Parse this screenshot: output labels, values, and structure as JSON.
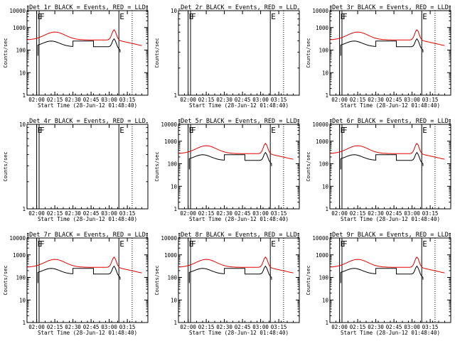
{
  "chart_data": [
    {
      "type": "line",
      "title": "Det 1r BLACK = Events, RED = LLD",
      "ylabel": "Counts/sec",
      "xlabel": "Start Time (28-Jun-12 01:48:40)",
      "xticks": [
        "02:00",
        "02:15",
        "02:30",
        "02:45",
        "03:00",
        "03:15"
      ],
      "log_y": true,
      "ylim": [
        1,
        10000
      ],
      "yticks": [
        "1",
        "10",
        "100",
        "1000",
        "10000"
      ],
      "markers": [
        {
          "label": "E",
          "t": "02:00"
        },
        {
          "label": "F",
          "t": "02:01"
        },
        {
          "label": "E",
          "t": "03:08"
        }
      ],
      "series": [
        {
          "name": "Events",
          "color": "#000000",
          "enabled": true
        },
        {
          "name": "LLD",
          "color": "#e00000",
          "enabled": true
        }
      ]
    },
    {
      "type": "line",
      "title": "Det 2r BLACK = Events, RED = LLD",
      "ylabel": "Counts/sec",
      "xlabel": "Start Time (28-Jun-12 01:48:40)",
      "xticks": [
        "02:00",
        "02:15",
        "02:30",
        "02:45",
        "03:00",
        "03:15"
      ],
      "log_y": true,
      "ylim": [
        1,
        10
      ],
      "yticks": [
        "1",
        "10"
      ],
      "markers": [
        {
          "label": "E",
          "t": "02:00"
        },
        {
          "label": "F",
          "t": "02:01"
        },
        {
          "label": "E",
          "t": "03:08"
        }
      ],
      "series": [
        {
          "name": "Events",
          "color": "#000000",
          "enabled": false
        },
        {
          "name": "LLD",
          "color": "#e00000",
          "enabled": false
        }
      ]
    },
    {
      "type": "line",
      "title": "Det 3r BLACK = Events, RED = LLD",
      "ylabel": "Counts/sec",
      "xlabel": "Start Time (28-Jun-12 01:48:40)",
      "xticks": [
        "02:00",
        "02:15",
        "02:30",
        "02:45",
        "03:00",
        "03:15"
      ],
      "log_y": true,
      "ylim": [
        1,
        10000
      ],
      "yticks": [
        "1",
        "10",
        "100",
        "1000",
        "10000"
      ],
      "markers": [
        {
          "label": "E",
          "t": "02:00"
        },
        {
          "label": "F",
          "t": "02:01"
        },
        {
          "label": "E",
          "t": "03:08"
        }
      ],
      "series": [
        {
          "name": "Events",
          "color": "#000000",
          "enabled": true
        },
        {
          "name": "LLD",
          "color": "#e00000",
          "enabled": true
        }
      ]
    },
    {
      "type": "line",
      "title": "Det 4r BLACK = Events, RED = LLD",
      "ylabel": "Counts/sec",
      "xlabel": "Start Time (28-Jun-12 01:48:40)",
      "xticks": [
        "02:00",
        "02:15",
        "02:30",
        "02:45",
        "03:00",
        "03:15"
      ],
      "log_y": true,
      "ylim": [
        1,
        10
      ],
      "yticks": [
        "1",
        "10"
      ],
      "markers": [
        {
          "label": "E",
          "t": "02:00"
        },
        {
          "label": "F",
          "t": "02:01"
        },
        {
          "label": "E",
          "t": "03:08"
        }
      ],
      "series": [
        {
          "name": "Events",
          "color": "#000000",
          "enabled": false
        },
        {
          "name": "LLD",
          "color": "#e00000",
          "enabled": false
        }
      ]
    },
    {
      "type": "line",
      "title": "Det 5r BLACK = Events, RED = LLD",
      "ylabel": "Counts/sec",
      "xlabel": "Start Time (28-Jun-12 01:48:40)",
      "xticks": [
        "02:00",
        "02:15",
        "02:30",
        "02:45",
        "03:00",
        "03:15"
      ],
      "log_y": true,
      "ylim": [
        1,
        10000
      ],
      "yticks": [
        "1",
        "10",
        "100",
        "1000",
        "10000"
      ],
      "markers": [
        {
          "label": "E",
          "t": "02:00"
        },
        {
          "label": "F",
          "t": "02:01"
        },
        {
          "label": "E",
          "t": "03:08"
        }
      ],
      "series": [
        {
          "name": "Events",
          "color": "#000000",
          "enabled": true
        },
        {
          "name": "LLD",
          "color": "#e00000",
          "enabled": true
        }
      ]
    },
    {
      "type": "line",
      "title": "Det 6r BLACK = Events, RED = LLD",
      "ylabel": "Counts/sec",
      "xlabel": "Start Time (28-Jun-12 01:48:40)",
      "xticks": [
        "02:00",
        "02:15",
        "02:30",
        "02:45",
        "03:00",
        "03:15"
      ],
      "log_y": true,
      "ylim": [
        1,
        10000
      ],
      "yticks": [
        "1",
        "10",
        "100",
        "1000",
        "10000"
      ],
      "markers": [
        {
          "label": "E",
          "t": "02:00"
        },
        {
          "label": "F",
          "t": "02:01"
        },
        {
          "label": "E",
          "t": "03:08"
        }
      ],
      "series": [
        {
          "name": "Events",
          "color": "#000000",
          "enabled": true
        },
        {
          "name": "LLD",
          "color": "#e00000",
          "enabled": true
        }
      ]
    },
    {
      "type": "line",
      "title": "Det 7r BLACK = Events, RED = LLD",
      "ylabel": "Counts/sec",
      "xlabel": "Start Time (28-Jun-12 01:48:40)",
      "xticks": [
        "02:00",
        "02:15",
        "02:30",
        "02:45",
        "03:00",
        "03:15"
      ],
      "log_y": true,
      "ylim": [
        1,
        10000
      ],
      "yticks": [
        "1",
        "10",
        "100",
        "1000",
        "10000"
      ],
      "markers": [
        {
          "label": "E",
          "t": "02:00"
        },
        {
          "label": "F",
          "t": "02:01"
        },
        {
          "label": "E",
          "t": "03:08"
        }
      ],
      "series": [
        {
          "name": "Events",
          "color": "#000000",
          "enabled": true
        },
        {
          "name": "LLD",
          "color": "#e00000",
          "enabled": true
        }
      ]
    },
    {
      "type": "line",
      "title": "Det 8r BLACK = Events, RED = LLD",
      "ylabel": "Counts/sec",
      "xlabel": "Start Time (28-Jun-12 01:48:40)",
      "xticks": [
        "02:00",
        "02:15",
        "02:30",
        "02:45",
        "03:00",
        "03:15"
      ],
      "log_y": true,
      "ylim": [
        1,
        10000
      ],
      "yticks": [
        "1",
        "10",
        "100",
        "1000",
        "10000"
      ],
      "markers": [
        {
          "label": "E",
          "t": "02:00"
        },
        {
          "label": "F",
          "t": "02:01"
        },
        {
          "label": "E",
          "t": "03:08"
        }
      ],
      "series": [
        {
          "name": "Events",
          "color": "#000000",
          "enabled": true
        },
        {
          "name": "LLD",
          "color": "#e00000",
          "enabled": true
        }
      ]
    },
    {
      "type": "line",
      "title": "Det 9r BLACK = Events, RED = LLD",
      "ylabel": "Counts/sec",
      "xlabel": "Start Time (28-Jun-12 01:48:40)",
      "xticks": [
        "02:00",
        "02:15",
        "02:30",
        "02:45",
        "03:00",
        "03:15"
      ],
      "log_y": true,
      "ylim": [
        1,
        10000
      ],
      "yticks": [
        "1",
        "10",
        "100",
        "1000",
        "10000"
      ],
      "markers": [
        {
          "label": "E",
          "t": "02:00"
        },
        {
          "label": "F",
          "t": "02:01"
        },
        {
          "label": "E",
          "t": "03:08"
        }
      ],
      "series": [
        {
          "name": "Events",
          "color": "#000000",
          "enabled": true
        },
        {
          "name": "LLD",
          "color": "#e00000",
          "enabled": true
        }
      ]
    }
  ]
}
